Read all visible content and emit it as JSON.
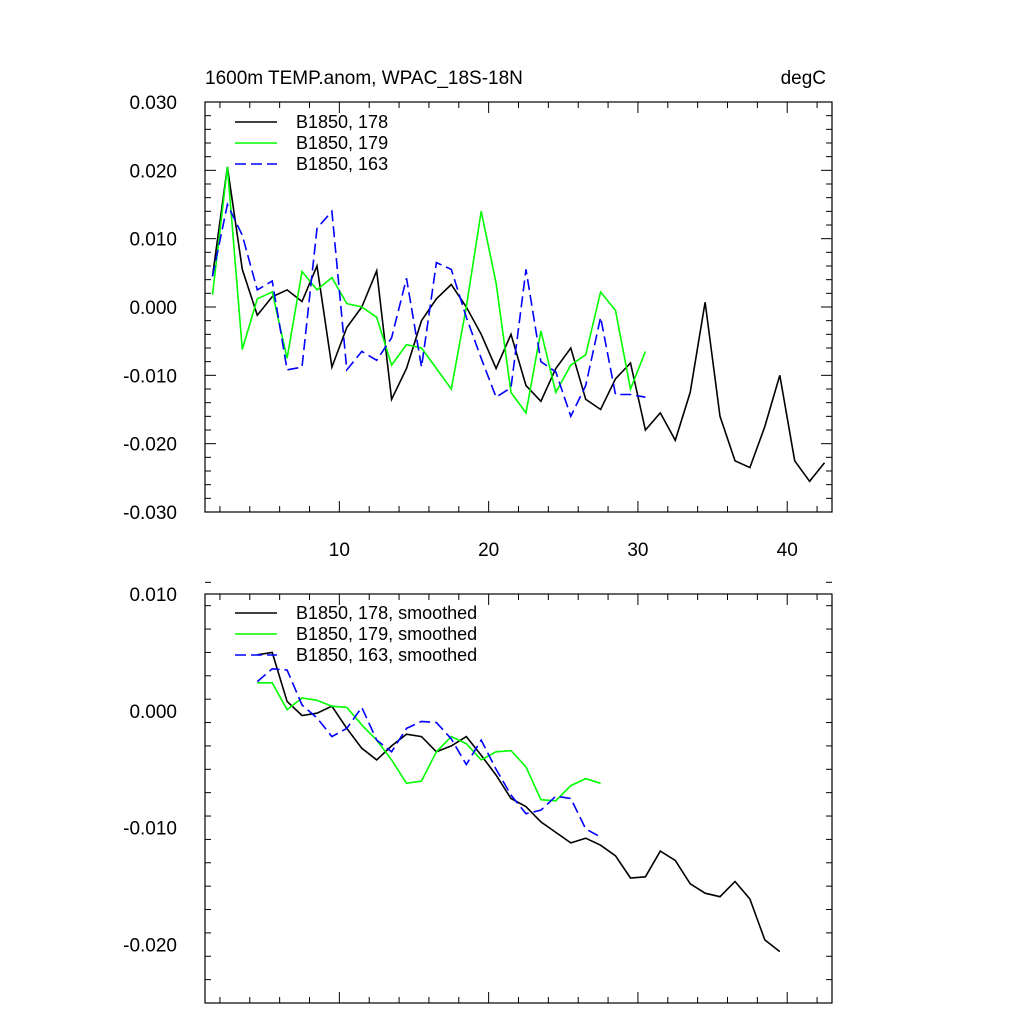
{
  "chart_data": [
    {
      "type": "line",
      "title": "1600m TEMP.anom, WPAC_18S-18N",
      "units_label": "degC",
      "xlabel": "",
      "ylabel": "",
      "xlim": [
        1,
        43
      ],
      "ylim": [
        -0.03,
        0.03
      ],
      "xticks": [
        10,
        20,
        30,
        40
      ],
      "xtick_labels": [
        "10",
        "20",
        "30",
        "40"
      ],
      "yticks": [
        -0.03,
        -0.02,
        -0.01,
        0.0,
        0.01,
        0.02,
        0.03
      ],
      "ytick_labels": [
        "-0.030",
        "-0.020",
        "-0.010",
        "0.000",
        "0.010",
        "0.020",
        "0.030"
      ],
      "grid": false,
      "legend_position": "top-left",
      "series": [
        {
          "name": "B1850, 178",
          "color": "#000000",
          "dash": "solid",
          "x": [
            1.5,
            2.5,
            3.5,
            4.5,
            5.5,
            6.5,
            7.5,
            8.5,
            9.5,
            10.5,
            11.5,
            12.5,
            13.5,
            14.5,
            15.5,
            16.5,
            17.5,
            18.5,
            19.5,
            20.5,
            21.5,
            22.5,
            23.5,
            24.5,
            25.5,
            26.5,
            27.5,
            28.5,
            29.5,
            30.5,
            31.5,
            32.5,
            33.5,
            34.5,
            35.5,
            36.5,
            37.5,
            38.5,
            39.5,
            40.5,
            41.5,
            42.5
          ],
          "y": [
            0.0045,
            0.0205,
            0.0055,
            -0.0012,
            0.0015,
            0.0025,
            0.0008,
            0.006,
            -0.0088,
            -0.003,
            0.0,
            0.0053,
            -0.0135,
            -0.009,
            -0.002,
            0.0012,
            0.0033,
            0.0,
            -0.004,
            -0.009,
            -0.004,
            -0.0115,
            -0.0138,
            -0.009,
            -0.006,
            -0.0135,
            -0.015,
            -0.0105,
            -0.0082,
            -0.018,
            -0.0155,
            -0.0195,
            -0.0125,
            0.0007,
            -0.016,
            -0.0225,
            -0.0235,
            -0.0175,
            -0.01,
            -0.0225,
            -0.0255,
            -0.0228
          ]
        },
        {
          "name": "B1850, 179",
          "color": "#00ff00",
          "dash": "solid",
          "x": [
            1.5,
            2.5,
            3.5,
            4.5,
            5.5,
            6.5,
            7.5,
            8.5,
            9.5,
            10.5,
            11.5,
            12.5,
            13.5,
            14.5,
            15.5,
            16.5,
            17.5,
            18.5,
            19.5,
            20.5,
            21.5,
            22.5,
            23.5,
            24.5,
            25.5,
            26.5,
            27.5,
            28.5,
            29.5,
            30.5
          ],
          "y": [
            0.0018,
            0.0205,
            -0.0062,
            0.0012,
            0.0022,
            -0.0075,
            0.0052,
            0.0025,
            0.0043,
            0.0005,
            0.0,
            -0.0015,
            -0.0085,
            -0.0055,
            -0.006,
            -0.009,
            -0.012,
            0.0,
            0.014,
            0.0035,
            -0.0125,
            -0.0155,
            -0.0035,
            -0.0125,
            -0.0085,
            -0.007,
            0.0022,
            -0.0005,
            -0.012,
            -0.0065
          ]
        },
        {
          "name": "B1850, 163",
          "color": "#0000ff",
          "dash": "dashed",
          "x": [
            1.5,
            2.5,
            3.5,
            4.5,
            5.5,
            6.5,
            7.5,
            8.5,
            9.5,
            10.5,
            11.5,
            12.5,
            13.5,
            14.5,
            15.5,
            16.5,
            17.5,
            18.5,
            19.5,
            20.5,
            21.5,
            22.5,
            23.5,
            24.5,
            25.5,
            26.5,
            27.5,
            28.5,
            29.5,
            30.5
          ],
          "y": [
            0.0045,
            0.015,
            0.0105,
            0.0025,
            0.0038,
            -0.0092,
            -0.0088,
            0.0115,
            0.014,
            -0.0092,
            -0.0065,
            -0.0078,
            -0.0045,
            0.0042,
            -0.0088,
            0.0065,
            0.0055,
            -0.0015,
            -0.0075,
            -0.0132,
            -0.0118,
            0.0055,
            -0.008,
            -0.0095,
            -0.016,
            -0.0115,
            -0.0015,
            -0.0128,
            -0.0128,
            -0.0132
          ]
        }
      ]
    },
    {
      "type": "line",
      "title": "",
      "xlabel": "",
      "ylabel": "",
      "xlim": [
        1,
        43
      ],
      "ylim": [
        -0.025,
        0.01
      ],
      "xticks": [
        10,
        20,
        30,
        40
      ],
      "xtick_labels": [],
      "yticks": [
        -0.02,
        -0.01,
        0.0,
        0.01
      ],
      "ytick_labels": [
        "-0.020",
        "-0.010",
        "0.000",
        "0.010"
      ],
      "grid": false,
      "legend_position": "top-left",
      "series": [
        {
          "name": "B1850, 178, smoothed",
          "color": "#000000",
          "dash": "solid",
          "x": [
            4.5,
            5.5,
            6.5,
            7.5,
            8.5,
            9.5,
            10.5,
            11.5,
            12.5,
            13.5,
            14.5,
            15.5,
            16.5,
            17.5,
            18.5,
            19.5,
            20.5,
            21.5,
            22.5,
            23.5,
            24.5,
            25.5,
            26.5,
            27.5,
            28.5,
            29.5,
            30.5,
            31.5,
            32.5,
            33.5,
            34.5,
            35.5,
            36.5,
            37.5,
            38.5,
            39.5
          ],
          "y": [
            0.0048,
            0.005,
            0.0008,
            -0.0004,
            -0.0002,
            0.0004,
            -0.0015,
            -0.0032,
            -0.0042,
            -0.003,
            -0.002,
            -0.0022,
            -0.0035,
            -0.003,
            -0.0022,
            -0.0038,
            -0.0055,
            -0.0075,
            -0.0082,
            -0.0095,
            -0.0104,
            -0.0113,
            -0.0109,
            -0.0115,
            -0.0124,
            -0.0143,
            -0.0142,
            -0.012,
            -0.0128,
            -0.0148,
            -0.0156,
            -0.0159,
            -0.0146,
            -0.0161,
            -0.0196,
            -0.0206
          ]
        },
        {
          "name": "B1850, 179, smoothed",
          "color": "#00ff00",
          "dash": "solid",
          "x": [
            4.5,
            5.5,
            6.5,
            7.5,
            8.5,
            9.5,
            10.5,
            11.5,
            12.5,
            13.5,
            14.5,
            15.5,
            16.5,
            17.5,
            18.5,
            19.5,
            20.5,
            21.5,
            22.5,
            23.5,
            24.5,
            25.5,
            26.5,
            27.5
          ],
          "y": [
            0.0024,
            0.0024,
            0.0001,
            0.0011,
            0.0009,
            0.0004,
            0.0003,
            -0.0012,
            -0.0025,
            -0.0042,
            -0.0062,
            -0.006,
            -0.0035,
            -0.0022,
            -0.0028,
            -0.0042,
            -0.0035,
            -0.0034,
            -0.0048,
            -0.0076,
            -0.0077,
            -0.0064,
            -0.0058,
            -0.0062
          ]
        },
        {
          "name": "B1850, 163, smoothed",
          "color": "#0000ff",
          "dash": "dashed",
          "x": [
            4.5,
            5.5,
            6.5,
            7.5,
            8.5,
            9.5,
            10.5,
            11.5,
            12.5,
            13.5,
            14.5,
            15.5,
            16.5,
            17.5,
            18.5,
            19.5,
            20.5,
            21.5,
            22.5,
            23.5,
            24.5,
            25.5,
            26.5,
            27.5
          ],
          "y": [
            0.0025,
            0.0036,
            0.0035,
            0.0005,
            -0.0006,
            -0.0022,
            -0.0015,
            0.0003,
            -0.0025,
            -0.0035,
            -0.0015,
            -0.0009,
            -0.001,
            -0.0024,
            -0.0046,
            -0.0025,
            -0.005,
            -0.0072,
            -0.0088,
            -0.0085,
            -0.0073,
            -0.0075,
            -0.0101,
            -0.0108
          ]
        }
      ]
    }
  ]
}
